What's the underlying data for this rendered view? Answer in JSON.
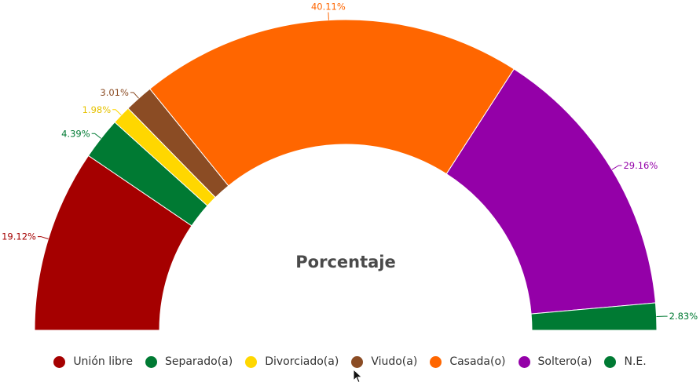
{
  "chart_data": {
    "type": "pie",
    "subtype": "semi-donut",
    "title": "Porcentaje",
    "slices": [
      {
        "name": "Unión libre",
        "value": 19.12,
        "label": "19.12%",
        "color": "#a50000"
      },
      {
        "name": "Separado(a)",
        "value": 4.39,
        "label": "4.39%",
        "color": "#007a33"
      },
      {
        "name": "Divorciado(a)",
        "value": 1.98,
        "label": "1.98%",
        "color": "#ffd700"
      },
      {
        "name": "Viudo(a)",
        "value": 3.01,
        "label": "3.01%",
        "color": "#8b4c24"
      },
      {
        "name": "Casada(o)",
        "value": 40.11,
        "label": "40.11%",
        "color": "#ff6600"
      },
      {
        "name": "Soltero(a)",
        "value": 29.16,
        "label": "29.16%",
        "color": "#9400a8"
      },
      {
        "name": "N.E.",
        "value": 2.83,
        "label": "2.83%",
        "color": "#007a33"
      }
    ],
    "legend_position": "bottom"
  },
  "legend": {
    "items": [
      "Unión libre",
      "Separado(a)",
      "Divorciado(a)",
      "Viudo(a)",
      "Casada(o)",
      "Soltero(a)",
      "N.E."
    ]
  }
}
